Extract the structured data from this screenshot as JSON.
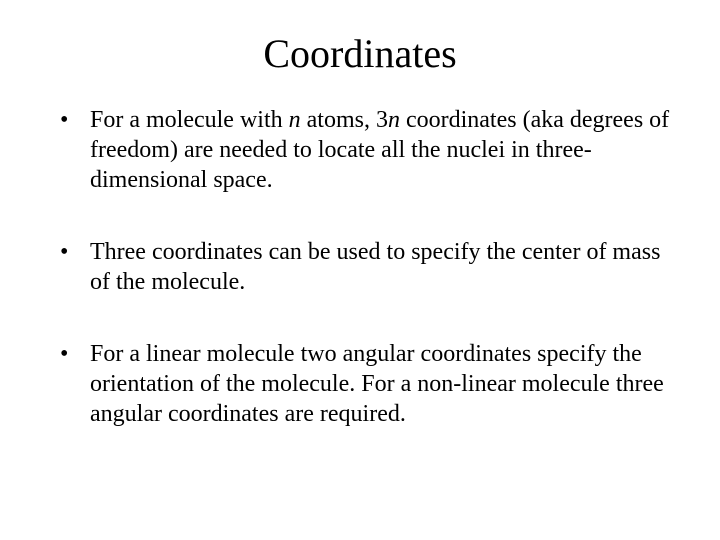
{
  "title": "Coordinates",
  "bullets": [
    {
      "segments": [
        {
          "text": "For a molecule with ",
          "italic": false
        },
        {
          "text": "n",
          "italic": true
        },
        {
          "text": " atoms, 3",
          "italic": false
        },
        {
          "text": "n",
          "italic": true
        },
        {
          "text": " coordinates (aka degrees of freedom) are needed to locate all the nuclei in three-dimensional space.",
          "italic": false
        }
      ]
    },
    {
      "segments": [
        {
          "text": "Three coordinates can be used to specify the center of mass of the molecule.",
          "italic": false
        }
      ]
    },
    {
      "segments": [
        {
          "text": "For a linear molecule two angular coordinates specify the orientation of the molecule.  For a non-linear molecule three angular coordinates are required.",
          "italic": false
        }
      ]
    }
  ],
  "colors": {
    "background": "#ffffff",
    "text": "#000000"
  },
  "typography": {
    "title_fontsize": 40,
    "body_fontsize": 24,
    "font_family": "Times New Roman"
  }
}
